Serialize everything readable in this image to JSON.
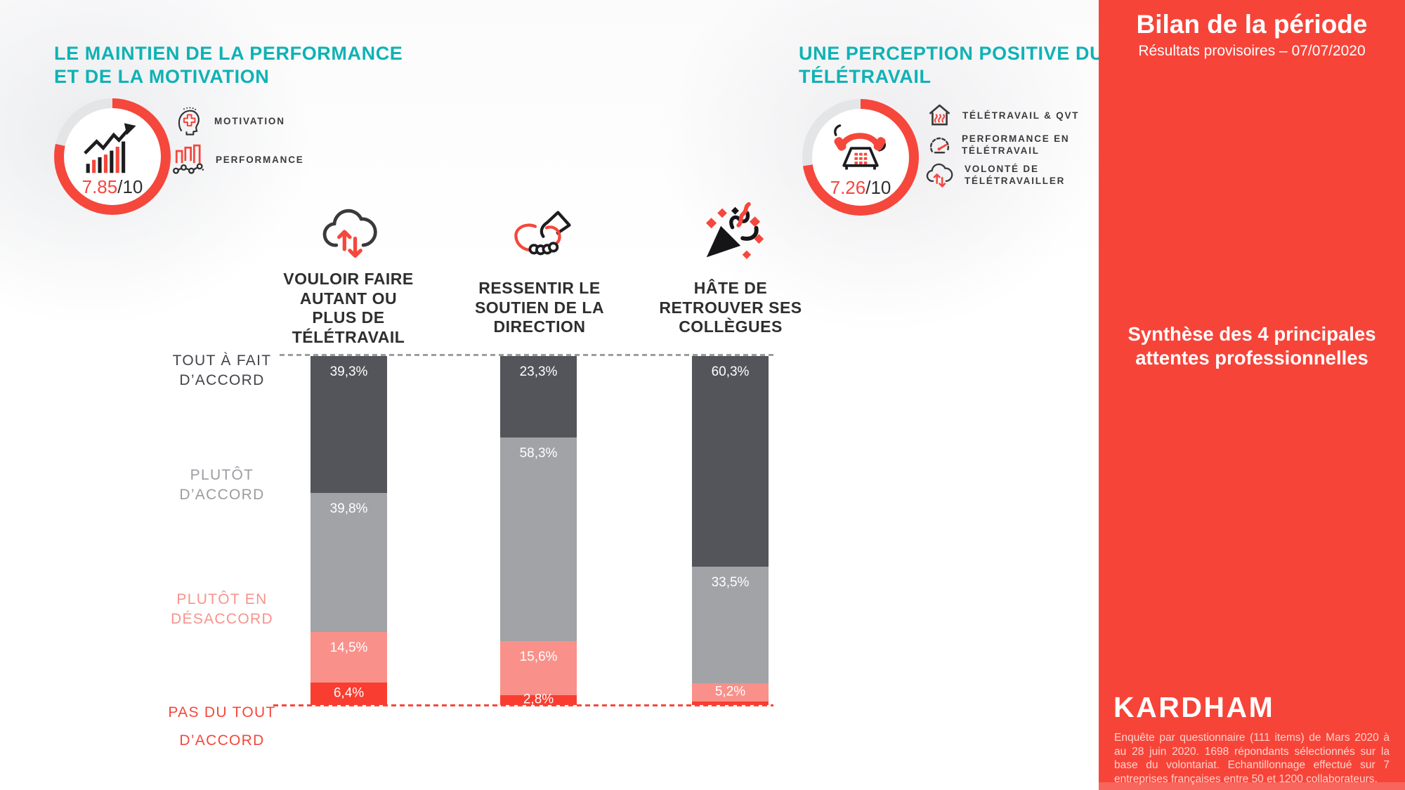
{
  "theme": {
    "teal": "#0fb2b5",
    "sidebar_red": "#f74439",
    "gauge_red": "#f5473c",
    "gauge_track": "#e4e5e7",
    "dashed_top": "#9d9d9d",
    "dashed_bottom": "#f5473c"
  },
  "left_section": {
    "title": "LE MAINTIEN DE LA PERFORMANCE\nET DE LA MOTIVATION",
    "score": {
      "value": "7.85",
      "suffix": "/10",
      "percent": 78.5
    },
    "legend": [
      {
        "icon": "head-cross-icon",
        "label": "MOTIVATION"
      },
      {
        "icon": "bars-trend-icon",
        "label": "PERFORMANCE"
      }
    ]
  },
  "right_section": {
    "title": "UNE PERCEPTION POSITIVE DU\nTÉLÉTRAVAIL",
    "score": {
      "value": "7.26",
      "suffix": "/10",
      "percent": 72.6
    },
    "legend": [
      {
        "icon": "house-heat-icon",
        "label": "TÉLÉTRAVAIL & QVT"
      },
      {
        "icon": "speedometer-icon",
        "label": "PERFORMANCE EN\nTÉLÉTRAVAIL"
      },
      {
        "icon": "cloud-arrows-icon",
        "label": "VOLONTÉ DE\nTÉLÉTRAVAILLER"
      }
    ]
  },
  "sidebar": {
    "title": "Bilan de la période",
    "subtitle": "Résultats provisoires – 07/07/2020",
    "highlight": "Synthèse des 4 principales\nattentes professionnelles",
    "logo": "KARDHAM",
    "footnote": "Enquête par questionnaire (111 items) de Mars 2020 à au 28 juin 2020. 1698 répondants sélectionnés sur la base du volontariat. Echantillonnage effectué sur 7 entreprises françaises entre 50 et 1200 collaborateurs."
  },
  "chart_data": {
    "type": "bar",
    "stacked": true,
    "unit": "%",
    "ylim": [
      0,
      100
    ],
    "grid": false,
    "categories": [
      "VOULOIR FAIRE AUTANT OU PLUS DE TÉLÉTRAVAIL",
      "RESSENTIR LE SOUTIEN DE LA DIRECTION",
      "HÂTE DE RETROUVER SES COLLÈGUES"
    ],
    "category_labels": [
      "VOULOIR FAIRE\nAUTANT OU\nPLUS DE\nTÉLÉTRAVAIL",
      "RESSENTIR LE\nSOUTIEN DE LA\nDIRECTION",
      "HÂTE DE\nRETROUVER SES\nCOLLÈGUES"
    ],
    "category_icons": [
      "cloud-arrows-icon",
      "handshake-icon",
      "party-popper-icon"
    ],
    "series": [
      {
        "name": "TOUT À FAIT D’ACCORD",
        "label": "TOUT À FAIT\nD’ACCORD",
        "color": "#53555b",
        "label_color": "#43444a",
        "values": [
          39.3,
          23.3,
          60.3
        ]
      },
      {
        "name": "PLUTÔT D’ACCORD",
        "label": "PLUTÔT\nD’ACCORD",
        "color": "#a2a3a7",
        "label_color": "#9b9ca0",
        "values": [
          39.8,
          58.3,
          33.5
        ]
      },
      {
        "name": "PLUTÔT EN DÉSACCORD",
        "label": "PLUTÔT EN\nDÉSACCORD",
        "color": "#f9918a",
        "label_color": "#f8938c",
        "values": [
          14.5,
          15.6,
          5.2
        ]
      },
      {
        "name": "PAS DU TOUT D’ACCORD",
        "label": "PAS DU TOUT\nD’ACCORD",
        "color": "#fa3d31",
        "label_color": "#f5473c",
        "values": [
          6.4,
          2.8,
          1.0
        ]
      }
    ],
    "value_labels": [
      [
        "39,3%",
        "39,8%",
        "14,5%",
        "6,4%"
      ],
      [
        "23,3%",
        "58,3%",
        "15,6%",
        "2,8%"
      ],
      [
        "60,3%",
        "33,5%",
        "5,2%",
        ""
      ]
    ]
  }
}
